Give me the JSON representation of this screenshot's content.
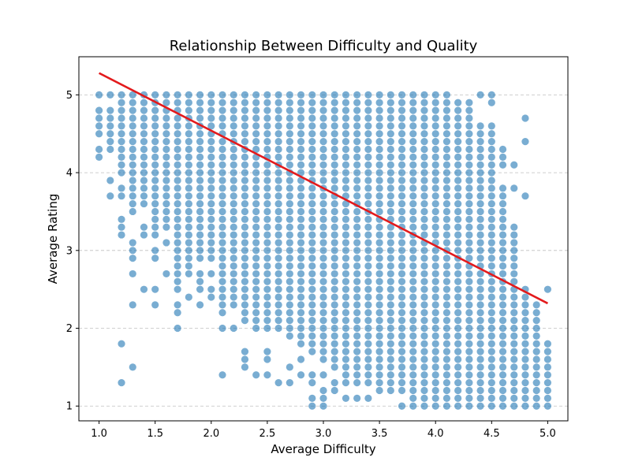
{
  "chart_data": {
    "type": "scatter",
    "title": "Relationship Between Difficulty and Quality",
    "xlabel": "Average Difficulty",
    "ylabel": "Average Rating",
    "xlim": [
      0.82,
      5.18
    ],
    "ylim": [
      0.81,
      5.49
    ],
    "xticks": [
      "1.0",
      "1.5",
      "2.0",
      "2.5",
      "3.0",
      "3.5",
      "4.0",
      "4.5",
      "5.0"
    ],
    "yticks": [
      "1",
      "2",
      "3",
      "4",
      "5"
    ],
    "grid": "horizontal-dashed",
    "point_color": "#1f77b4",
    "point_opacity": 0.6,
    "trend_color": "#e31a1c",
    "trend_line": {
      "x": [
        1.0,
        5.0
      ],
      "y": [
        5.28,
        2.32
      ]
    },
    "columns": [
      {
        "x": 1.0,
        "min": 4.2,
        "max": 5.0,
        "extra": [],
        "missing": [
          4.4,
          4.9
        ]
      },
      {
        "x": 1.1,
        "min": 4.3,
        "max": 5.0,
        "extra": [
          3.9,
          3.7
        ],
        "missing": [
          4.9
        ]
      },
      {
        "x": 1.2,
        "min": 3.7,
        "max": 5.0,
        "extra": [
          3.4,
          3.3,
          3.2,
          1.8,
          1.3
        ],
        "missing": [
          3.9
        ]
      },
      {
        "x": 1.3,
        "min": 3.5,
        "max": 5.0,
        "extra": [
          3.1,
          3.0,
          2.9,
          2.7,
          2.3,
          1.5
        ],
        "missing": []
      },
      {
        "x": 1.4,
        "min": 3.6,
        "max": 5.0,
        "extra": [
          3.3,
          3.2,
          2.5
        ],
        "missing": []
      },
      {
        "x": 1.5,
        "min": 3.4,
        "max": 5.0,
        "extra": [
          3.3,
          3.2,
          3.0,
          2.9,
          2.5,
          2.3
        ],
        "missing": []
      },
      {
        "x": 1.6,
        "min": 3.3,
        "max": 5.0,
        "extra": [
          3.1,
          2.7
        ],
        "missing": []
      },
      {
        "x": 1.7,
        "min": 2.8,
        "max": 5.0,
        "extra": [
          2.7,
          2.6,
          2.5,
          2.3,
          2.2,
          2.0
        ],
        "missing": []
      },
      {
        "x": 1.8,
        "min": 2.7,
        "max": 5.0,
        "extra": [
          2.4
        ],
        "missing": []
      },
      {
        "x": 1.9,
        "min": 2.9,
        "max": 5.0,
        "extra": [
          2.7,
          2.6,
          2.5,
          2.3
        ],
        "missing": []
      },
      {
        "x": 2.0,
        "min": 2.9,
        "max": 5.0,
        "extra": [
          2.7,
          2.5,
          2.4
        ],
        "missing": []
      },
      {
        "x": 2.1,
        "min": 2.2,
        "max": 5.0,
        "extra": [
          2.0,
          1.4
        ],
        "missing": []
      },
      {
        "x": 2.2,
        "min": 2.3,
        "max": 5.0,
        "extra": [
          2.0
        ],
        "missing": []
      },
      {
        "x": 2.3,
        "min": 2.1,
        "max": 5.0,
        "extra": [
          1.7,
          1.6,
          1.5
        ],
        "missing": []
      },
      {
        "x": 2.4,
        "min": 2.0,
        "max": 5.0,
        "extra": [
          1.4
        ],
        "missing": []
      },
      {
        "x": 2.5,
        "min": 2.0,
        "max": 5.0,
        "extra": [
          1.7,
          1.6,
          1.4
        ],
        "missing": []
      },
      {
        "x": 2.6,
        "min": 2.0,
        "max": 5.0,
        "extra": [
          1.3
        ],
        "missing": []
      },
      {
        "x": 2.7,
        "min": 1.9,
        "max": 5.0,
        "extra": [
          1.5,
          1.3
        ],
        "missing": []
      },
      {
        "x": 2.8,
        "min": 1.8,
        "max": 5.0,
        "extra": [
          1.6,
          1.4
        ],
        "missing": []
      },
      {
        "x": 2.9,
        "min": 1.7,
        "max": 5.0,
        "extra": [
          1.4,
          1.3,
          1.1,
          1.0
        ],
        "missing": []
      },
      {
        "x": 3.0,
        "min": 1.6,
        "max": 5.0,
        "extra": [
          1.4,
          1.2,
          1.1,
          1.0
        ],
        "missing": []
      },
      {
        "x": 3.1,
        "min": 1.5,
        "max": 5.0,
        "extra": [
          1.3,
          1.2
        ],
        "missing": []
      },
      {
        "x": 3.2,
        "min": 1.4,
        "max": 5.0,
        "extra": [
          1.3,
          1.1
        ],
        "missing": []
      },
      {
        "x": 3.3,
        "min": 1.3,
        "max": 5.0,
        "extra": [
          1.1
        ],
        "missing": []
      },
      {
        "x": 3.4,
        "min": 1.3,
        "max": 5.0,
        "extra": [
          1.1
        ],
        "missing": []
      },
      {
        "x": 3.5,
        "min": 1.2,
        "max": 5.0,
        "extra": [],
        "missing": []
      },
      {
        "x": 3.6,
        "min": 1.2,
        "max": 5.0,
        "extra": [],
        "missing": []
      },
      {
        "x": 3.7,
        "min": 1.2,
        "max": 5.0,
        "extra": [
          1.0
        ],
        "missing": []
      },
      {
        "x": 3.8,
        "min": 1.1,
        "max": 5.0,
        "extra": [
          1.0
        ],
        "missing": []
      },
      {
        "x": 3.9,
        "min": 1.0,
        "max": 5.0,
        "extra": [],
        "missing": []
      },
      {
        "x": 4.0,
        "min": 1.0,
        "max": 5.0,
        "extra": [],
        "missing": []
      },
      {
        "x": 4.1,
        "min": 1.0,
        "max": 5.0,
        "extra": [],
        "missing": []
      },
      {
        "x": 4.2,
        "min": 1.0,
        "max": 4.9,
        "extra": [],
        "missing": []
      },
      {
        "x": 4.3,
        "min": 1.0,
        "max": 4.9,
        "extra": [],
        "missing": []
      },
      {
        "x": 4.4,
        "min": 1.0,
        "max": 4.6,
        "extra": [
          5.0
        ],
        "missing": []
      },
      {
        "x": 4.5,
        "min": 1.0,
        "max": 4.5,
        "extra": [
          5.0,
          4.9,
          4.6
        ],
        "missing": []
      },
      {
        "x": 4.6,
        "min": 1.0,
        "max": 4.3,
        "extra": [],
        "missing": [
          4.0,
          3.9
        ]
      },
      {
        "x": 4.7,
        "min": 1.0,
        "max": 3.3,
        "extra": [
          4.1,
          3.8
        ],
        "missing": []
      },
      {
        "x": 4.8,
        "min": 1.0,
        "max": 2.5,
        "extra": [
          4.7,
          4.4,
          3.7
        ],
        "missing": []
      },
      {
        "x": 4.9,
        "min": 1.0,
        "max": 2.3,
        "extra": [],
        "missing": []
      },
      {
        "x": 5.0,
        "min": 1.0,
        "max": 1.8,
        "extra": [
          2.5
        ],
        "missing": []
      }
    ]
  }
}
